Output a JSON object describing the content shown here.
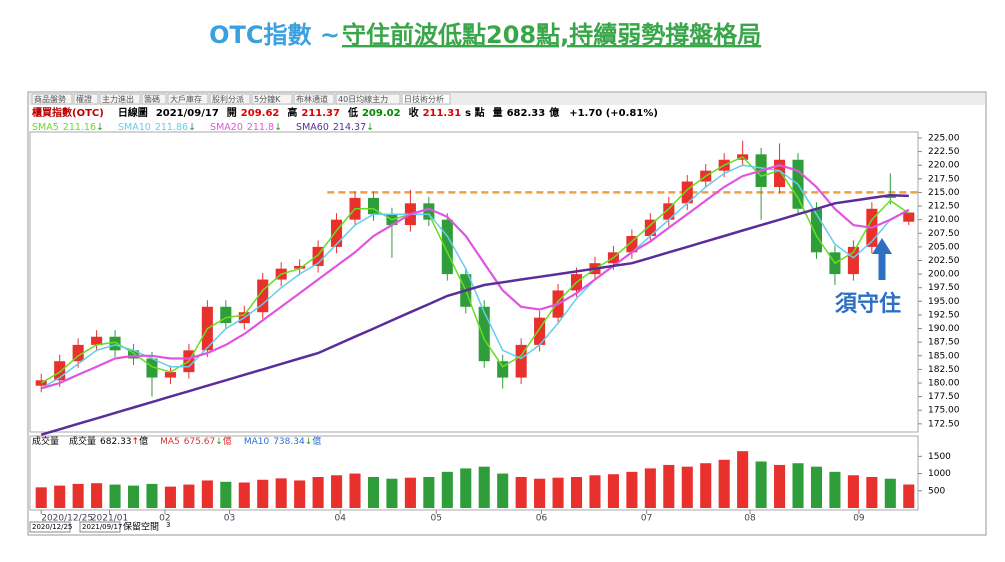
{
  "title": {
    "lead": "OTC指數 ~ ",
    "main": "守住前波低點208點,持續弱勢撐盤格局"
  },
  "toolbar": [
    "商品盤勢",
    "權證",
    "主力進出",
    "籌碼",
    "大戶庫存",
    "股利分派",
    "5分鐘K",
    "布林通道",
    "40日均線主力",
    "日技術分析"
  ],
  "header": {
    "name": "櫃買指數(OTC)",
    "kind": "日線圖",
    "date": "2021/09/17",
    "open_label": "開",
    "high_label": "高",
    "low_label": "低",
    "close_label": "收",
    "unit": "s 點",
    "volume_label": "量",
    "volume_unit": "億",
    "change": "+1.70 (+0.81%)"
  },
  "bottom": {
    "start": "2020/12/25",
    "end": "2021/09/17",
    "reserve": "保留空間",
    "reserve_value": 3
  },
  "chart_data": {
    "type": "candlestick",
    "up_color": "#e8302d",
    "down_color": "#2f9e3a",
    "open": [
      179.5,
      180.5,
      184,
      187,
      188.5,
      186,
      184.5,
      181,
      182,
      186,
      194,
      191,
      193,
      199,
      201,
      201.5,
      205,
      210,
      214,
      211,
      209,
      213,
      210,
      200,
      194,
      184,
      181,
      187,
      192,
      197,
      200,
      202,
      204,
      207,
      210,
      213,
      217,
      219,
      221,
      222,
      216,
      221,
      212,
      204,
      200,
      205,
      214.5,
      209.62
    ],
    "high": [
      181.7,
      185.2,
      188.2,
      189.7,
      189.7,
      187.2,
      185.7,
      183.2,
      187.2,
      195.2,
      195.2,
      194.2,
      200.2,
      202.2,
      202.7,
      206.2,
      211.2,
      215.2,
      215.2,
      212.2,
      215.5,
      214.2,
      211.2,
      201.2,
      195.2,
      185.2,
      188.2,
      193.2,
      198.2,
      201.2,
      203.2,
      205.2,
      208.2,
      211.2,
      214.2,
      218.2,
      220.2,
      222.2,
      224.5,
      223.2,
      224,
      222.2,
      213.2,
      205.2,
      206.2,
      213.2,
      218.5,
      211.37
    ],
    "low": [
      178.3,
      179.3,
      182.8,
      185.8,
      184.8,
      183.3,
      177.5,
      179.8,
      180.8,
      184.8,
      189.8,
      189.8,
      191.8,
      197.8,
      199.8,
      200.3,
      203.8,
      208.8,
      209.8,
      203,
      207.8,
      208.8,
      198.8,
      192.8,
      182.8,
      179,
      179.8,
      185.8,
      190.8,
      195.8,
      198.8,
      200.8,
      202.8,
      205.8,
      208.8,
      211.8,
      215.8,
      217.8,
      219.8,
      210,
      214.8,
      210.8,
      202.8,
      198,
      198.8,
      203.8,
      212.8,
      209.02
    ],
    "close": [
      180.5,
      184,
      187,
      188.5,
      186,
      184.5,
      181,
      182,
      186,
      194,
      191,
      193,
      199,
      201,
      201.5,
      205,
      210,
      214,
      211,
      209,
      213,
      210,
      200,
      194,
      184,
      181,
      187,
      192,
      197,
      200,
      202,
      204,
      207,
      210,
      213,
      217,
      219,
      221,
      222,
      216,
      221,
      212,
      204,
      200,
      205,
      212,
      214,
      211.31
    ],
    "ma": [
      {
        "name": "SMA5",
        "color": "#66dd22",
        "arrow": "↓",
        "values": [
          180,
          182,
          185,
          187,
          187.5,
          185.5,
          183,
          182,
          184,
          190,
          192,
          192.5,
          197,
          200,
          201,
          203.5,
          208,
          212,
          212,
          210,
          211,
          211,
          204,
          197,
          188,
          183,
          185,
          190,
          195,
          198.5,
          201,
          203,
          206,
          209,
          212,
          215.5,
          218,
          220,
          221.5,
          218,
          219,
          214,
          207,
          202,
          204,
          210,
          213.5,
          211.16
        ]
      },
      {
        "name": "SMA10",
        "color": "#66ccee",
        "arrow": "↓",
        "values": [
          179,
          181,
          183.5,
          186,
          187,
          186,
          184.5,
          183,
          183,
          186.5,
          190,
          192,
          194.5,
          197.5,
          200,
          202,
          205.5,
          209,
          211,
          211,
          211,
          211,
          207,
          201,
          193,
          186,
          184.5,
          187,
          191,
          195.5,
          199,
          201.5,
          204,
          207,
          210,
          213,
          216,
          218.5,
          220,
          219.5,
          219,
          216.5,
          211,
          205.5,
          203,
          206,
          210,
          211.86
        ]
      },
      {
        "name": "SMA20",
        "color": "#e055e0",
        "arrow": "↓",
        "values": [
          179,
          180,
          181.5,
          183,
          184.5,
          185,
          185,
          184.5,
          184.5,
          185.5,
          187,
          189,
          191.5,
          194,
          196.5,
          199,
          201.5,
          204,
          207,
          209,
          211,
          212,
          210.5,
          207,
          202,
          197,
          194,
          193.5,
          194.5,
          196.5,
          199,
          201.5,
          204,
          206,
          208.5,
          211,
          213.5,
          216,
          218,
          219,
          220,
          219,
          216,
          212,
          209,
          208.5,
          210,
          211.8
        ]
      },
      {
        "name": "SMA60",
        "color": "#5b2d9a",
        "arrow": "↓",
        "values": [
          170.5,
          171.5,
          172.5,
          173.5,
          174.5,
          175.5,
          176.5,
          177.5,
          178.5,
          179.5,
          180.5,
          181.5,
          182.5,
          183.5,
          184.5,
          185.5,
          187,
          188.5,
          190,
          191.5,
          193,
          194.5,
          196,
          197,
          198,
          198.5,
          199,
          199.5,
          200,
          200.5,
          201,
          201.5,
          202,
          203,
          204,
          205,
          206,
          207,
          208,
          209,
          210,
          211,
          212,
          213,
          213.5,
          214,
          214.5,
          214.37
        ]
      }
    ],
    "xlim": [
      -0.5,
      47.5
    ],
    "xticks": [
      {
        "value": 0,
        "label": "2020/12/25"
      },
      {
        "value": 3.7,
        "label": "2021/01"
      },
      {
        "value": 6.7,
        "label": "02"
      },
      {
        "value": 10.2,
        "label": "03"
      },
      {
        "value": 16.2,
        "label": "04"
      },
      {
        "value": 21.4,
        "label": "05"
      },
      {
        "value": 27.1,
        "label": "06"
      },
      {
        "value": 32.8,
        "label": "07"
      },
      {
        "value": 38.4,
        "label": "08"
      },
      {
        "value": 44.3,
        "label": "09"
      }
    ],
    "ylim": [
      171,
      226.1
    ],
    "yticks": [
      {
        "value": 172.5,
        "label": "172.50"
      },
      {
        "value": 175,
        "label": "175.00"
      },
      {
        "value": 177.5,
        "label": "177.50"
      },
      {
        "value": 180,
        "label": "180.00"
      },
      {
        "value": 182.5,
        "label": "182.50"
      },
      {
        "value": 185,
        "label": "185.00"
      },
      {
        "value": 187.5,
        "label": "187.50"
      },
      {
        "value": 190,
        "label": "190.00"
      },
      {
        "value": 192.5,
        "label": "192.50"
      },
      {
        "value": 195,
        "label": "195.00"
      },
      {
        "value": 197.5,
        "label": "197.50"
      },
      {
        "value": 200,
        "label": "200.00"
      },
      {
        "value": 202.5,
        "label": "202.50"
      },
      {
        "value": 205,
        "label": "205.00"
      },
      {
        "value": 207.5,
        "label": "207.50"
      },
      {
        "value": 210,
        "label": "210.00"
      },
      {
        "value": 212.5,
        "label": "212.50"
      },
      {
        "value": 215,
        "label": "215.00"
      },
      {
        "value": 217.5,
        "label": "217.50"
      },
      {
        "value": 220,
        "label": "220.00"
      },
      {
        "value": 222.5,
        "label": "222.50"
      },
      {
        "value": 225,
        "label": "225.00"
      }
    ],
    "reference_line": {
      "value": 215,
      "start": 15.5,
      "color": "#f0a040"
    },
    "annotation": "須守住",
    "volume": {
      "label": "成交量",
      "item": "成交量",
      "arrow": "↑",
      "unit": "億",
      "values": [
        600,
        650,
        700,
        720,
        680,
        650,
        700,
        620,
        680,
        800,
        760,
        740,
        820,
        860,
        800,
        900,
        950,
        1000,
        900,
        850,
        880,
        900,
        1050,
        1150,
        1200,
        1000,
        900,
        850,
        880,
        900,
        950,
        980,
        1050,
        1150,
        1250,
        1200,
        1300,
        1400,
        1650,
        1350,
        1250,
        1300,
        1200,
        1050,
        950,
        900,
        850,
        682.33
      ],
      "ma": [
        {
          "name": "MA5",
          "value": 675.67,
          "arrow": "↓",
          "color": "#e03030"
        },
        {
          "name": "MA10",
          "value": 738.34,
          "arrow": "↓",
          "color": "#2a6fd0"
        }
      ],
      "ylim": [
        0,
        1800
      ],
      "yticks": [
        500,
        1000,
        1500
      ]
    }
  }
}
